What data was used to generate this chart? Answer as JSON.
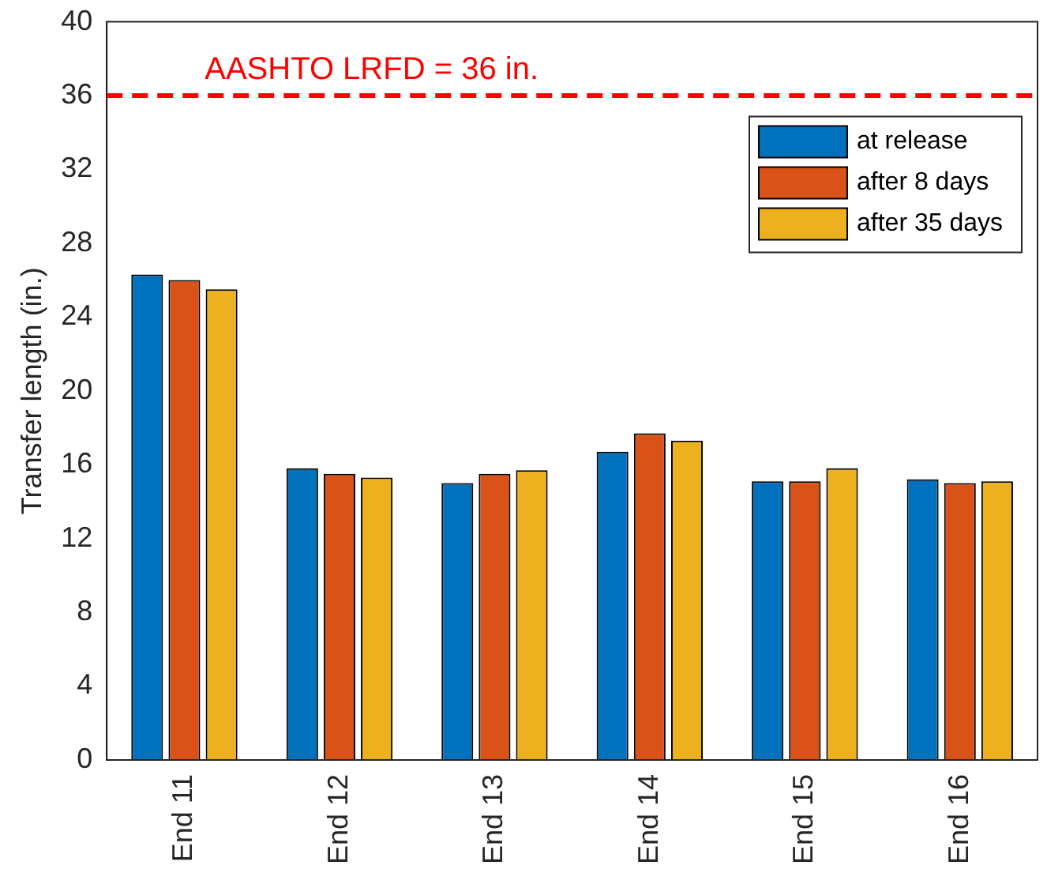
{
  "chart_data": {
    "type": "bar",
    "ylabel": "Transfer length (in.)",
    "categories": [
      "End 11",
      "End 12",
      "End 13",
      "End 14",
      "End 15",
      "End 16"
    ],
    "series": [
      {
        "name": "at release",
        "color": "#0072bd",
        "values": [
          26.3,
          15.8,
          15.0,
          16.7,
          15.1,
          15.2
        ]
      },
      {
        "name": "after 8 days",
        "color": "#d95319",
        "values": [
          26.0,
          15.5,
          15.5,
          17.7,
          15.1,
          15.0
        ]
      },
      {
        "name": "after 35 days",
        "color": "#edb120",
        "values": [
          25.5,
          15.3,
          15.7,
          17.3,
          15.8,
          15.1
        ]
      }
    ],
    "ylim": [
      0,
      40
    ],
    "yticks": [
      0,
      4,
      8,
      12,
      16,
      20,
      24,
      28,
      32,
      36,
      40
    ],
    "grid": false,
    "legend": "top right",
    "ref_lines": [
      {
        "axis": "y",
        "value": 36,
        "label": "AASHTO LRFD = 36 in.",
        "color": "#ff0000",
        "line_style": "dashed"
      }
    ]
  }
}
